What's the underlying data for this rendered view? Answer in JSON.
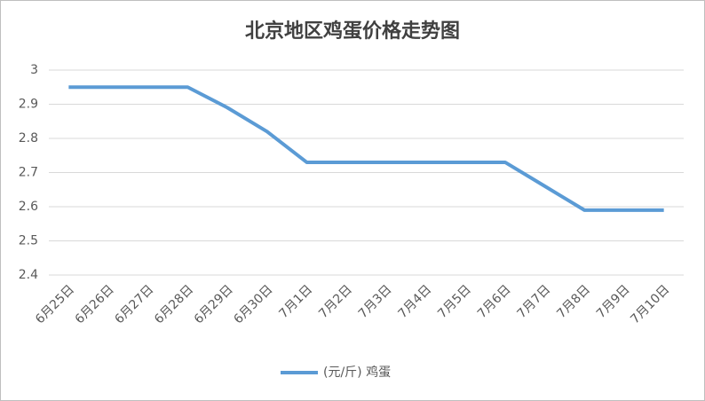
{
  "chart_data": {
    "type": "line",
    "title": "北京地区鸡蛋价格走势图",
    "categories": [
      "6月25日",
      "6月26日",
      "6月27日",
      "6月28日",
      "6月29日",
      "6月30日",
      "7月1日",
      "7月2日",
      "7月3日",
      "7月4日",
      "7月5日",
      "7月6日",
      "7月7日",
      "7月8日",
      "7月9日",
      "7月10日"
    ],
    "series": [
      {
        "name": "(元/斤) 鸡蛋",
        "color": "#5b9bd5",
        "values": [
          2.95,
          2.95,
          2.95,
          2.95,
          2.89,
          2.82,
          2.73,
          2.73,
          2.73,
          2.73,
          2.73,
          2.73,
          2.66,
          2.59,
          2.59,
          2.59
        ]
      }
    ],
    "ylim": [
      2.4,
      3
    ],
    "yticks": [
      2.4,
      2.5,
      2.6,
      2.7,
      2.8,
      2.9,
      3
    ],
    "grid": true
  }
}
